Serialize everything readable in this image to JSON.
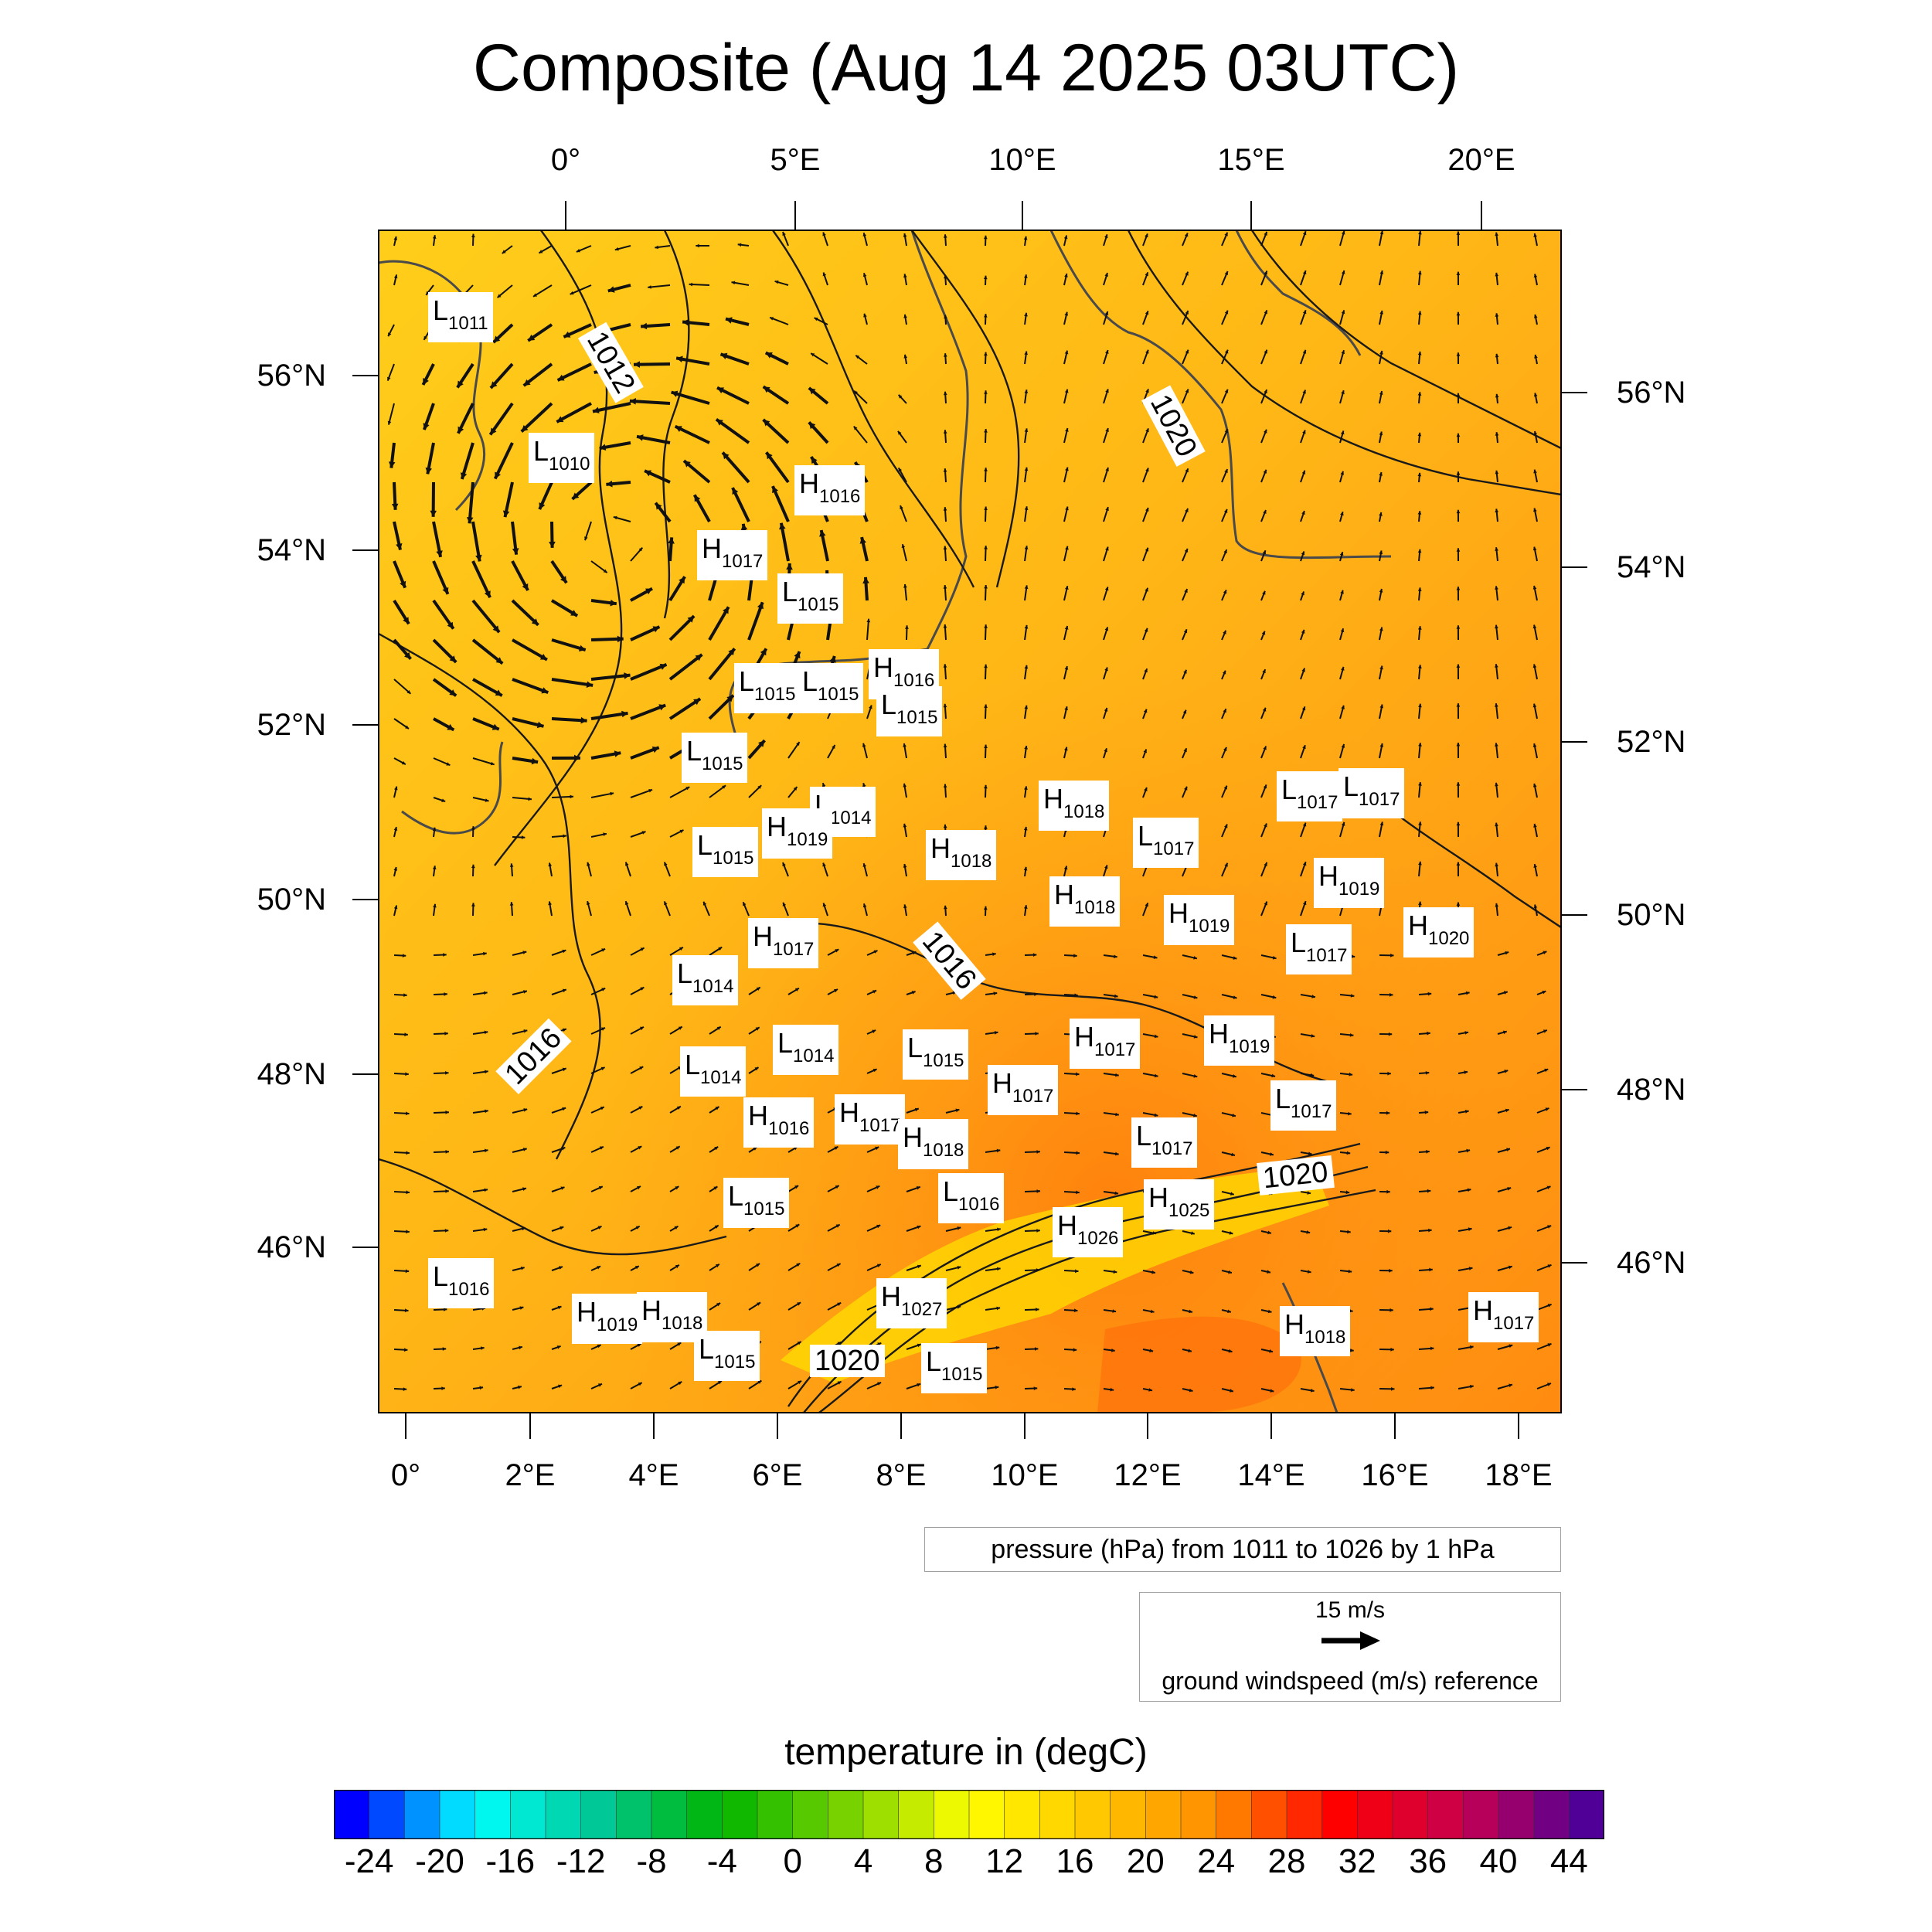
{
  "title": "Composite (Aug 14 2025 03UTC)",
  "axes": {
    "top_lon_labels": [
      "0°",
      "5°E",
      "10°E",
      "15°E",
      "20°E"
    ],
    "bottom_lon_labels": [
      "0°",
      "2°E",
      "4°E",
      "6°E",
      "8°E",
      "10°E",
      "12°E",
      "14°E",
      "16°E",
      "18°E"
    ],
    "left_lat_labels": [
      "56°N",
      "54°N",
      "52°N",
      "50°N",
      "48°N",
      "46°N"
    ],
    "right_lat_labels": [
      "56°N",
      "54°N",
      "52°N",
      "50°N",
      "48°N",
      "46°N"
    ]
  },
  "pressure_legend": "pressure (hPa) from 1011 to 1026 by 1 hPa",
  "wind_legend": {
    "speed": "15 m/s",
    "caption": "ground windspeed (m/s) reference"
  },
  "colorbar": {
    "title": "temperature in (degC)",
    "labels": [
      "-24",
      "-20",
      "-16",
      "-12",
      "-8",
      "-4",
      "0",
      "4",
      "8",
      "12",
      "16",
      "20",
      "24",
      "28",
      "32",
      "36",
      "40",
      "44"
    ],
    "range": [
      -26,
      46
    ],
    "step": 2,
    "colors": [
      "#0000ff",
      "#00ffff",
      "#00c896",
      "#00b400",
      "#78d200",
      "#ffff00",
      "#ffc800",
      "#ff8c00",
      "#ff0000",
      "#c80050",
      "#500096"
    ]
  },
  "pressure_systems": [
    {
      "type": "L",
      "value": "1011"
    },
    {
      "type": "L",
      "value": "1010"
    },
    {
      "type": "H",
      "value": "1016"
    },
    {
      "type": "H",
      "value": "1017"
    },
    {
      "type": "L",
      "value": "1015"
    },
    {
      "type": "L",
      "value": "1015"
    },
    {
      "type": "L",
      "value": "1015"
    },
    {
      "type": "H",
      "value": "1016"
    },
    {
      "type": "L",
      "value": "1015"
    },
    {
      "type": "L",
      "value": "1015"
    },
    {
      "type": "L",
      "value": "1014"
    },
    {
      "type": "H",
      "value": "1019"
    },
    {
      "type": "L",
      "value": "1015"
    },
    {
      "type": "H",
      "value": "1018"
    },
    {
      "type": "H",
      "value": "1018"
    },
    {
      "type": "L",
      "value": "1017"
    },
    {
      "type": "L",
      "value": "1017"
    },
    {
      "type": "L",
      "value": "1017"
    },
    {
      "type": "H",
      "value": "1019"
    },
    {
      "type": "H",
      "value": "1018"
    },
    {
      "type": "H",
      "value": "1019"
    },
    {
      "type": "H",
      "value": "1020"
    },
    {
      "type": "L",
      "value": "1017"
    },
    {
      "type": "H",
      "value": "1017"
    },
    {
      "type": "L",
      "value": "1014"
    },
    {
      "type": "L",
      "value": "1014"
    },
    {
      "type": "L",
      "value": "1015"
    },
    {
      "type": "L",
      "value": "1014"
    },
    {
      "type": "H",
      "value": "1017"
    },
    {
      "type": "H",
      "value": "1019"
    },
    {
      "type": "H",
      "value": "1017"
    },
    {
      "type": "L",
      "value": "1017"
    },
    {
      "type": "H",
      "value": "1016"
    },
    {
      "type": "H",
      "value": "1017"
    },
    {
      "type": "H",
      "value": "1018"
    },
    {
      "type": "L",
      "value": "1017"
    },
    {
      "type": "L",
      "value": "1015"
    },
    {
      "type": "L",
      "value": "1016"
    },
    {
      "type": "H",
      "value": "1025"
    },
    {
      "type": "H",
      "value": "1026"
    },
    {
      "type": "L",
      "value": "1016"
    },
    {
      "type": "H",
      "value": "1019"
    },
    {
      "type": "H",
      "value": "1018"
    },
    {
      "type": "L",
      "value": "1015"
    },
    {
      "type": "H",
      "value": "1027"
    },
    {
      "type": "L",
      "value": "1015"
    },
    {
      "type": "H",
      "value": "1018"
    },
    {
      "type": "H",
      "value": "1017"
    }
  ],
  "contour_labels": [
    "1012",
    "1020",
    "1016",
    "1016",
    "1020",
    "1020"
  ]
}
